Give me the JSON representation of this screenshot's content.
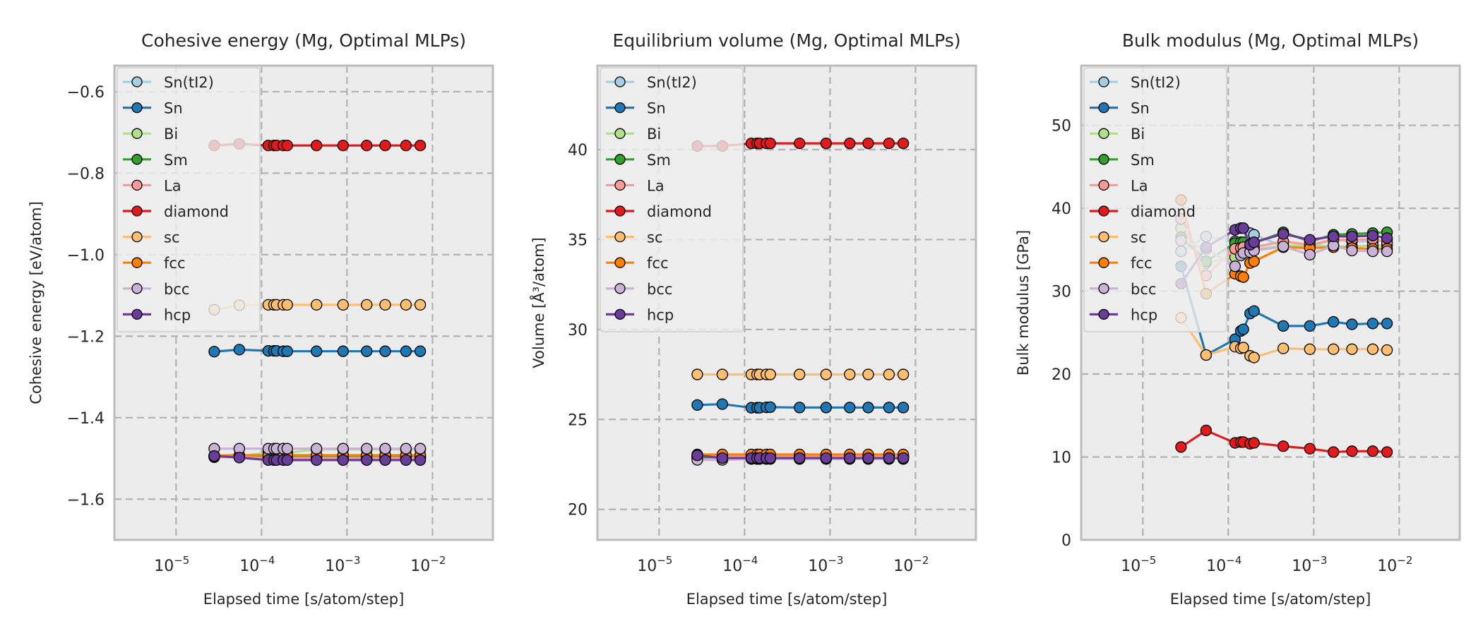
{
  "chart_data": [
    {
      "type": "line",
      "title": "Cohesive energy (Mg, Optimal MLPs)",
      "xlabel": "Elapsed time [s/atom/step]",
      "ylabel": "Cohesive energy [eV/atom]",
      "xscale": "log",
      "xlim": [
        1.9e-06,
        0.051
      ],
      "ylim": [
        -1.7,
        -0.536
      ],
      "xticks": [
        {
          "value": 1e-05,
          "label_base": "10",
          "label_exp": "−5"
        },
        {
          "value": 0.0001,
          "label_base": "10",
          "label_exp": "−4"
        },
        {
          "value": 0.001,
          "label_base": "10",
          "label_exp": "−3"
        },
        {
          "value": 0.01,
          "label_base": "10",
          "label_exp": "−2"
        }
      ],
      "yticks": [
        {
          "value": -0.6,
          "label": "−0.6"
        },
        {
          "value": -0.8,
          "label": "−0.8"
        },
        {
          "value": -1.0,
          "label": "−1.0"
        },
        {
          "value": -1.2,
          "label": "−1.2"
        },
        {
          "value": -1.4,
          "label": "−1.4"
        },
        {
          "value": -1.6,
          "label": "−1.6"
        }
      ],
      "grid": true,
      "legend_position": "upper-left",
      "x": [
        2.8e-05,
        5.5e-05,
        0.00012,
        0.00014,
        0.00015,
        0.00018,
        0.0002,
        0.00044,
        0.0009,
        0.0017,
        0.0028,
        0.0049,
        0.0072
      ],
      "series": [
        {
          "name": "Sn(tI2)",
          "values": [
            -1.497,
            -1.497,
            -1.497,
            -1.497,
            -1.497,
            -1.497,
            -1.497,
            -1.497,
            -1.497,
            -1.497,
            -1.497,
            -1.497,
            -1.497
          ]
        },
        {
          "name": "Sn",
          "values": [
            -1.238,
            -1.233,
            -1.236,
            -1.236,
            -1.236,
            -1.237,
            -1.237,
            -1.237,
            -1.237,
            -1.237,
            -1.237,
            -1.237,
            -1.237
          ]
        },
        {
          "name": "Bi",
          "values": [
            -1.494,
            -1.495,
            -1.485,
            -1.485,
            -1.485,
            -1.485,
            -1.486,
            -1.478,
            -1.478,
            -1.478,
            -1.478,
            -1.478,
            -1.478
          ]
        },
        {
          "name": "Sm",
          "values": [
            -1.495,
            -1.495,
            -1.495,
            -1.495,
            -1.495,
            -1.495,
            -1.495,
            -1.495,
            -1.495,
            -1.495,
            -1.495,
            -1.495,
            -1.495
          ]
        },
        {
          "name": "La",
          "values": [
            -1.496,
            -1.497,
            -1.499,
            -1.499,
            -1.499,
            -1.499,
            -1.499,
            -1.499,
            -1.499,
            -1.499,
            -1.499,
            -1.499,
            -1.499
          ]
        },
        {
          "name": "diamond",
          "values": [
            -0.732,
            -0.728,
            -0.732,
            -0.732,
            -0.732,
            -0.732,
            -0.732,
            -0.732,
            -0.732,
            -0.732,
            -0.732,
            -0.732,
            -0.732
          ]
        },
        {
          "name": "sc",
          "values": [
            -1.135,
            -1.124,
            -1.123,
            -1.123,
            -1.123,
            -1.123,
            -1.123,
            -1.123,
            -1.123,
            -1.123,
            -1.123,
            -1.123,
            -1.123
          ]
        },
        {
          "name": "fcc",
          "values": [
            -1.493,
            -1.492,
            -1.492,
            -1.492,
            -1.492,
            -1.492,
            -1.492,
            -1.492,
            -1.492,
            -1.492,
            -1.492,
            -1.492,
            -1.492
          ]
        },
        {
          "name": "bcc",
          "values": [
            -1.476,
            -1.476,
            -1.476,
            -1.476,
            -1.476,
            -1.476,
            -1.476,
            -1.476,
            -1.476,
            -1.476,
            -1.476,
            -1.476,
            -1.476
          ]
        },
        {
          "name": "hcp",
          "values": [
            -1.494,
            -1.498,
            -1.504,
            -1.504,
            -1.504,
            -1.504,
            -1.504,
            -1.504,
            -1.504,
            -1.504,
            -1.504,
            -1.504,
            -1.504
          ]
        }
      ]
    },
    {
      "type": "line",
      "title": "Equilibrium volume (Mg, Optimal MLPs)",
      "xlabel": "Elapsed time [s/atom/step]",
      "ylabel": "Volume [Å³/atom]",
      "xscale": "log",
      "xlim": [
        1.9e-06,
        0.051
      ],
      "ylim": [
        18.3,
        44.67
      ],
      "xticks": [
        {
          "value": 1e-05,
          "label_base": "10",
          "label_exp": "−5"
        },
        {
          "value": 0.0001,
          "label_base": "10",
          "label_exp": "−4"
        },
        {
          "value": 0.001,
          "label_base": "10",
          "label_exp": "−3"
        },
        {
          "value": 0.01,
          "label_base": "10",
          "label_exp": "−2"
        }
      ],
      "yticks": [
        {
          "value": 20,
          "label": "20"
        },
        {
          "value": 25,
          "label": "25"
        },
        {
          "value": 30,
          "label": "30"
        },
        {
          "value": 35,
          "label": "35"
        },
        {
          "value": 40,
          "label": "40"
        }
      ],
      "grid": true,
      "legend_position": "upper-left",
      "x": [
        2.8e-05,
        5.5e-05,
        0.00012,
        0.00014,
        0.00015,
        0.00018,
        0.0002,
        0.00044,
        0.0009,
        0.0017,
        0.0028,
        0.0049,
        0.0072
      ],
      "series": [
        {
          "name": "Sn(tI2)",
          "values": [
            22.85,
            22.85,
            22.85,
            22.85,
            22.85,
            22.85,
            22.85,
            22.85,
            22.85,
            22.85,
            22.85,
            22.85,
            22.85
          ]
        },
        {
          "name": "Sn",
          "values": [
            25.8,
            25.85,
            25.65,
            25.65,
            25.65,
            25.67,
            25.68,
            25.66,
            25.66,
            25.66,
            25.66,
            25.66,
            25.66
          ]
        },
        {
          "name": "Bi",
          "values": [
            22.95,
            22.95,
            22.95,
            22.95,
            22.95,
            22.95,
            22.95,
            22.95,
            22.95,
            22.95,
            22.95,
            22.95,
            22.95
          ]
        },
        {
          "name": "Sm",
          "values": [
            22.9,
            22.9,
            22.9,
            22.9,
            22.9,
            22.9,
            22.9,
            22.9,
            22.9,
            22.9,
            22.9,
            22.9,
            22.9
          ]
        },
        {
          "name": "La",
          "values": [
            22.95,
            22.95,
            22.95,
            22.95,
            22.95,
            22.95,
            22.95,
            22.95,
            22.95,
            22.95,
            22.95,
            22.95,
            22.95
          ]
        },
        {
          "name": "diamond",
          "values": [
            40.2,
            40.2,
            40.35,
            40.35,
            40.35,
            40.35,
            40.35,
            40.35,
            40.35,
            40.35,
            40.35,
            40.35,
            40.35
          ]
        },
        {
          "name": "sc",
          "values": [
            27.5,
            27.5,
            27.5,
            27.5,
            27.5,
            27.5,
            27.5,
            27.5,
            27.5,
            27.5,
            27.5,
            27.5,
            27.5
          ]
        },
        {
          "name": "fcc",
          "values": [
            23.05,
            23.05,
            23.05,
            23.05,
            23.05,
            23.05,
            23.05,
            23.05,
            23.05,
            23.05,
            23.05,
            23.05,
            23.05
          ]
        },
        {
          "name": "bcc",
          "values": [
            22.75,
            22.75,
            22.8,
            22.8,
            22.8,
            22.8,
            22.8,
            22.8,
            22.8,
            22.8,
            22.8,
            22.8,
            22.8
          ]
        },
        {
          "name": "hcp",
          "values": [
            23.0,
            22.85,
            22.85,
            22.85,
            22.85,
            22.85,
            22.85,
            22.85,
            22.85,
            22.85,
            22.85,
            22.85,
            22.85
          ]
        }
      ]
    },
    {
      "type": "line",
      "title": "Bulk modulus (Mg, Optimal MLPs)",
      "xlabel": "Elapsed time [s/atom/step]",
      "ylabel": "Bulk modulus [GPa]",
      "xscale": "log",
      "xlim": [
        1.9e-06,
        0.051
      ],
      "ylim": [
        0,
        57.2
      ],
      "xticks": [
        {
          "value": 1e-05,
          "label_base": "10",
          "label_exp": "−5"
        },
        {
          "value": 0.0001,
          "label_base": "10",
          "label_exp": "−4"
        },
        {
          "value": 0.001,
          "label_base": "10",
          "label_exp": "−3"
        },
        {
          "value": 0.01,
          "label_base": "10",
          "label_exp": "−2"
        }
      ],
      "yticks": [
        {
          "value": 0,
          "label": "0"
        },
        {
          "value": 10,
          "label": "10"
        },
        {
          "value": 20,
          "label": "20"
        },
        {
          "value": 30,
          "label": "30"
        },
        {
          "value": 40,
          "label": "40"
        },
        {
          "value": 50,
          "label": "50"
        }
      ],
      "grid": true,
      "legend_position": "upper-left",
      "x": [
        2.8e-05,
        5.5e-05,
        0.00012,
        0.00014,
        0.00015,
        0.00018,
        0.0002,
        0.00044,
        0.0009,
        0.0017,
        0.0028,
        0.0049,
        0.0072
      ],
      "series": [
        {
          "name": "Sn(tI2)",
          "values": [
            34.8,
            36.6,
            36.0,
            35.8,
            35.6,
            37.0,
            36.8,
            35.4,
            35.4,
            36.2,
            36.0,
            36.0,
            36.2
          ]
        },
        {
          "name": "Sn",
          "values": [
            33.0,
            22.3,
            24.2,
            25.2,
            25.4,
            27.3,
            27.6,
            25.8,
            25.8,
            26.3,
            26.0,
            26.1,
            26.1
          ]
        },
        {
          "name": "Bi",
          "values": [
            37.6,
            33.4,
            34.1,
            34.8,
            35.0,
            35.1,
            35.0,
            35.5,
            35.5,
            35.4,
            35.4,
            35.5,
            35.5
          ]
        },
        {
          "name": "Sm",
          "values": [
            36.5,
            33.6,
            35.8,
            35.9,
            35.9,
            35.7,
            35.8,
            37.1,
            36.0,
            36.8,
            36.9,
            37.0,
            37.1
          ]
        },
        {
          "name": "La",
          "values": [
            38.7,
            31.9,
            35.1,
            35.2,
            35.3,
            35.3,
            35.3,
            36.0,
            35.6,
            36.2,
            36.2,
            36.3,
            35.9
          ]
        },
        {
          "name": "diamond",
          "values": [
            11.2,
            13.2,
            11.7,
            11.8,
            11.8,
            11.6,
            11.7,
            11.3,
            11.0,
            10.6,
            10.7,
            10.7,
            10.6
          ]
        },
        {
          "name": "sc",
          "values": [
            26.8,
            22.3,
            23.3,
            23.1,
            23.2,
            22.2,
            22.0,
            23.1,
            23.0,
            23.0,
            23.0,
            23.0,
            22.9
          ]
        },
        {
          "name": "fcc",
          "values": [
            41.0,
            29.7,
            32.1,
            31.8,
            31.7,
            33.4,
            33.6,
            35.3,
            35.2,
            35.3,
            35.2,
            35.1,
            35.1
          ]
        },
        {
          "name": "bcc",
          "values": [
            36.1,
            35.1,
            33.0,
            34.3,
            34.6,
            34.7,
            34.9,
            35.4,
            34.4,
            35.5,
            34.9,
            34.8,
            34.8
          ]
        },
        {
          "name": "hcp",
          "values": [
            30.9,
            35.3,
            37.4,
            37.6,
            37.6,
            35.6,
            35.9,
            36.9,
            36.2,
            36.6,
            36.6,
            36.7,
            36.4
          ]
        }
      ]
    }
  ],
  "series_styles": [
    {
      "name": "Sn(tI2)",
      "color": "#a6cee3"
    },
    {
      "name": "Sn",
      "color": "#1f78b4"
    },
    {
      "name": "Bi",
      "color": "#b2df8a"
    },
    {
      "name": "Sm",
      "color": "#33a02c"
    },
    {
      "name": "La",
      "color": "#fb9a99"
    },
    {
      "name": "diamond",
      "color": "#e31a1c"
    },
    {
      "name": "sc",
      "color": "#fdbf6f"
    },
    {
      "name": "fcc",
      "color": "#ff7f00"
    },
    {
      "name": "bcc",
      "color": "#cab2d6"
    },
    {
      "name": "hcp",
      "color": "#6a3d9a"
    }
  ],
  "colors": {
    "axes_background": "#ececec",
    "axes_border": "#bcbcbc",
    "grid": "#b2b2b2",
    "legend_background": "#eeeeee",
    "marker_edge": "#000000"
  }
}
